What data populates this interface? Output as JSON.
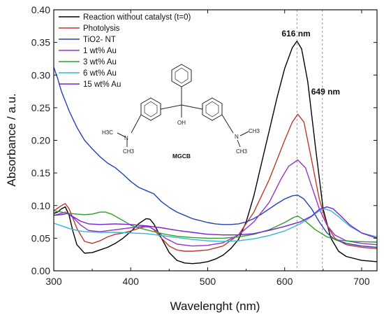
{
  "chart_data": {
    "type": "line",
    "xlabel": "Wavelenght (nm)",
    "ylabel": "Absorbance / a.u.",
    "xlim": [
      300,
      720
    ],
    "ylim": [
      0.0,
      0.4
    ],
    "xticks": [
      300,
      400,
      500,
      600,
      700
    ],
    "yticks": [
      0.0,
      0.05,
      0.1,
      0.15,
      0.2,
      0.25,
      0.3,
      0.35,
      0.4
    ],
    "ytick_labels": [
      "0.00",
      "0.05",
      "0.10",
      "0.15",
      "0.20",
      "0.25",
      "0.30",
      "0.35",
      "0.40"
    ],
    "xtick_labels": [
      "300",
      "400",
      "500",
      "600",
      "700"
    ],
    "legend_position": "top-left",
    "grid": false,
    "series": [
      {
        "name": "Reaction without catalyst (t=0)",
        "color": "#000000",
        "points": [
          [
            300,
            0.088
          ],
          [
            305,
            0.09
          ],
          [
            310,
            0.095
          ],
          [
            315,
            0.098
          ],
          [
            320,
            0.085
          ],
          [
            325,
            0.06
          ],
          [
            330,
            0.04
          ],
          [
            340,
            0.027
          ],
          [
            350,
            0.028
          ],
          [
            360,
            0.032
          ],
          [
            370,
            0.036
          ],
          [
            380,
            0.042
          ],
          [
            390,
            0.05
          ],
          [
            400,
            0.06
          ],
          [
            410,
            0.072
          ],
          [
            420,
            0.08
          ],
          [
            425,
            0.079
          ],
          [
            430,
            0.072
          ],
          [
            440,
            0.05
          ],
          [
            450,
            0.028
          ],
          [
            460,
            0.016
          ],
          [
            470,
            0.012
          ],
          [
            480,
            0.011
          ],
          [
            490,
            0.012
          ],
          [
            500,
            0.014
          ],
          [
            510,
            0.018
          ],
          [
            520,
            0.024
          ],
          [
            530,
            0.034
          ],
          [
            540,
            0.048
          ],
          [
            550,
            0.075
          ],
          [
            560,
            0.115
          ],
          [
            570,
            0.165
          ],
          [
            580,
            0.215
          ],
          [
            590,
            0.265
          ],
          [
            600,
            0.31
          ],
          [
            610,
            0.342
          ],
          [
            616,
            0.352
          ],
          [
            622,
            0.34
          ],
          [
            630,
            0.29
          ],
          [
            640,
            0.19
          ],
          [
            650,
            0.095
          ],
          [
            660,
            0.05
          ],
          [
            670,
            0.03
          ],
          [
            680,
            0.022
          ],
          [
            700,
            0.016
          ],
          [
            720,
            0.014
          ]
        ]
      },
      {
        "name": "Photolysis",
        "color": "#c0392b",
        "points": [
          [
            300,
            0.092
          ],
          [
            305,
            0.096
          ],
          [
            310,
            0.1
          ],
          [
            315,
            0.103
          ],
          [
            320,
            0.095
          ],
          [
            330,
            0.065
          ],
          [
            340,
            0.045
          ],
          [
            350,
            0.042
          ],
          [
            360,
            0.046
          ],
          [
            370,
            0.052
          ],
          [
            380,
            0.056
          ],
          [
            390,
            0.058
          ],
          [
            400,
            0.061
          ],
          [
            410,
            0.065
          ],
          [
            420,
            0.068
          ],
          [
            425,
            0.067
          ],
          [
            430,
            0.063
          ],
          [
            440,
            0.05
          ],
          [
            450,
            0.038
          ],
          [
            460,
            0.032
          ],
          [
            470,
            0.03
          ],
          [
            480,
            0.03
          ],
          [
            500,
            0.032
          ],
          [
            520,
            0.038
          ],
          [
            540,
            0.055
          ],
          [
            560,
            0.09
          ],
          [
            580,
            0.14
          ],
          [
            600,
            0.2
          ],
          [
            610,
            0.228
          ],
          [
            617,
            0.24
          ],
          [
            625,
            0.228
          ],
          [
            635,
            0.17
          ],
          [
            645,
            0.11
          ],
          [
            655,
            0.07
          ],
          [
            665,
            0.05
          ],
          [
            680,
            0.04
          ],
          [
            700,
            0.036
          ],
          [
            720,
            0.034
          ]
        ]
      },
      {
        "name": "TiO2- NT",
        "color": "#2540b8",
        "points": [
          [
            300,
            0.312
          ],
          [
            305,
            0.295
          ],
          [
            310,
            0.275
          ],
          [
            320,
            0.245
          ],
          [
            330,
            0.22
          ],
          [
            340,
            0.2
          ],
          [
            350,
            0.187
          ],
          [
            360,
            0.175
          ],
          [
            370,
            0.165
          ],
          [
            380,
            0.158
          ],
          [
            390,
            0.148
          ],
          [
            400,
            0.137
          ],
          [
            410,
            0.128
          ],
          [
            420,
            0.123
          ],
          [
            430,
            0.118
          ],
          [
            440,
            0.106
          ],
          [
            450,
            0.097
          ],
          [
            460,
            0.09
          ],
          [
            470,
            0.085
          ],
          [
            480,
            0.08
          ],
          [
            490,
            0.077
          ],
          [
            500,
            0.074
          ],
          [
            510,
            0.072
          ],
          [
            520,
            0.071
          ],
          [
            530,
            0.071
          ],
          [
            540,
            0.072
          ],
          [
            550,
            0.075
          ],
          [
            560,
            0.08
          ],
          [
            570,
            0.087
          ],
          [
            580,
            0.095
          ],
          [
            590,
            0.103
          ],
          [
            600,
            0.11
          ],
          [
            610,
            0.115
          ],
          [
            617,
            0.116
          ],
          [
            625,
            0.11
          ],
          [
            635,
            0.095
          ],
          [
            645,
            0.075
          ],
          [
            655,
            0.058
          ],
          [
            665,
            0.048
          ],
          [
            680,
            0.042
          ],
          [
            700,
            0.038
          ],
          [
            720,
            0.036
          ]
        ]
      },
      {
        "name": "1 wt% Au",
        "color": "#9932cc",
        "points": [
          [
            300,
            0.085
          ],
          [
            310,
            0.088
          ],
          [
            315,
            0.09
          ],
          [
            325,
            0.082
          ],
          [
            335,
            0.07
          ],
          [
            345,
            0.062
          ],
          [
            360,
            0.06
          ],
          [
            380,
            0.063
          ],
          [
            400,
            0.066
          ],
          [
            415,
            0.068
          ],
          [
            425,
            0.067
          ],
          [
            435,
            0.06
          ],
          [
            445,
            0.05
          ],
          [
            460,
            0.041
          ],
          [
            480,
            0.038
          ],
          [
            500,
            0.039
          ],
          [
            520,
            0.043
          ],
          [
            540,
            0.055
          ],
          [
            560,
            0.075
          ],
          [
            580,
            0.105
          ],
          [
            595,
            0.14
          ],
          [
            605,
            0.16
          ],
          [
            617,
            0.17
          ],
          [
            627,
            0.158
          ],
          [
            635,
            0.13
          ],
          [
            645,
            0.095
          ],
          [
            655,
            0.07
          ],
          [
            665,
            0.055
          ],
          [
            680,
            0.046
          ],
          [
            700,
            0.042
          ],
          [
            720,
            0.04
          ]
        ]
      },
      {
        "name": "3 wt% Au",
        "color": "#2e9e2e",
        "points": [
          [
            300,
            0.092
          ],
          [
            310,
            0.09
          ],
          [
            320,
            0.088
          ],
          [
            330,
            0.087
          ],
          [
            340,
            0.086
          ],
          [
            350,
            0.087
          ],
          [
            360,
            0.09
          ],
          [
            367,
            0.09
          ],
          [
            375,
            0.087
          ],
          [
            390,
            0.077
          ],
          [
            400,
            0.07
          ],
          [
            410,
            0.066
          ],
          [
            420,
            0.063
          ],
          [
            430,
            0.06
          ],
          [
            445,
            0.056
          ],
          [
            460,
            0.053
          ],
          [
            480,
            0.051
          ],
          [
            500,
            0.05
          ],
          [
            520,
            0.05
          ],
          [
            540,
            0.052
          ],
          [
            560,
            0.056
          ],
          [
            580,
            0.063
          ],
          [
            600,
            0.074
          ],
          [
            612,
            0.082
          ],
          [
            617,
            0.084
          ],
          [
            625,
            0.078
          ],
          [
            640,
            0.063
          ],
          [
            655,
            0.052
          ],
          [
            670,
            0.047
          ],
          [
            690,
            0.045
          ],
          [
            720,
            0.044
          ]
        ]
      },
      {
        "name": "6 wt% Au",
        "color": "#35b7d6",
        "points": [
          [
            300,
            0.073
          ],
          [
            310,
            0.069
          ],
          [
            320,
            0.065
          ],
          [
            330,
            0.062
          ],
          [
            340,
            0.06
          ],
          [
            360,
            0.059
          ],
          [
            380,
            0.059
          ],
          [
            400,
            0.058
          ],
          [
            420,
            0.057
          ],
          [
            440,
            0.054
          ],
          [
            460,
            0.051
          ],
          [
            480,
            0.048
          ],
          [
            500,
            0.046
          ],
          [
            520,
            0.045
          ],
          [
            540,
            0.046
          ],
          [
            560,
            0.049
          ],
          [
            580,
            0.054
          ],
          [
            600,
            0.061
          ],
          [
            620,
            0.072
          ],
          [
            635,
            0.083
          ],
          [
            645,
            0.092
          ],
          [
            652,
            0.095
          ],
          [
            660,
            0.092
          ],
          [
            670,
            0.083
          ],
          [
            685,
            0.068
          ],
          [
            700,
            0.058
          ],
          [
            720,
            0.052
          ]
        ]
      },
      {
        "name": "15 wt% Au",
        "color": "#7a1fd6",
        "points": [
          [
            300,
            0.085
          ],
          [
            310,
            0.086
          ],
          [
            318,
            0.088
          ],
          [
            325,
            0.083
          ],
          [
            335,
            0.076
          ],
          [
            345,
            0.072
          ],
          [
            360,
            0.071
          ],
          [
            380,
            0.072
          ],
          [
            400,
            0.071
          ],
          [
            420,
            0.069
          ],
          [
            440,
            0.066
          ],
          [
            460,
            0.062
          ],
          [
            480,
            0.059
          ],
          [
            500,
            0.056
          ],
          [
            520,
            0.055
          ],
          [
            540,
            0.055
          ],
          [
            560,
            0.057
          ],
          [
            580,
            0.062
          ],
          [
            600,
            0.068
          ],
          [
            620,
            0.075
          ],
          [
            635,
            0.084
          ],
          [
            645,
            0.094
          ],
          [
            655,
            0.098
          ],
          [
            663,
            0.095
          ],
          [
            672,
            0.085
          ],
          [
            685,
            0.07
          ],
          [
            700,
            0.058
          ],
          [
            720,
            0.05
          ]
        ]
      }
    ],
    "annotations": [
      {
        "text": "616 nm",
        "x": 616
      },
      {
        "text": "649 nm",
        "x": 649
      }
    ],
    "vlines": [
      616,
      649
    ],
    "inset": {
      "labels": {
        "oh": "OH",
        "n_left": "N",
        "n_right": "N",
        "h3c_left_top": "H3C",
        "ch3_left_bottom": "CH3",
        "ch3_right_top": "CH3",
        "ch3_right_bottom": "CH3",
        "name": "MGCB"
      }
    }
  }
}
